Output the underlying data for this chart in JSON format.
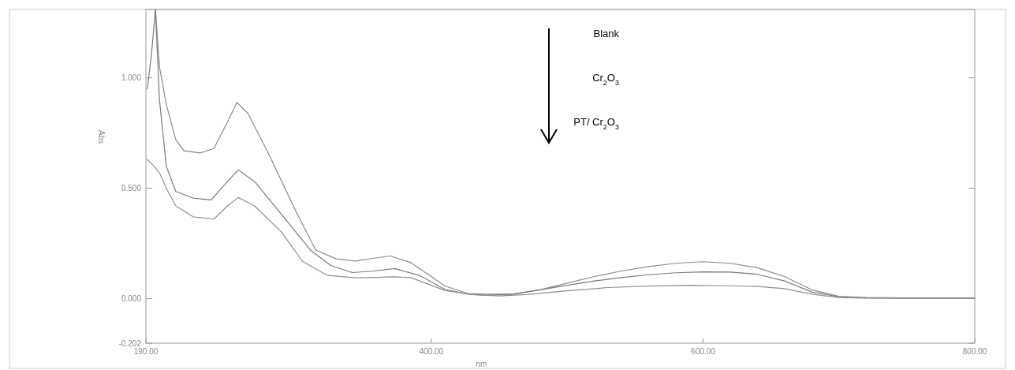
{
  "chart_data": {
    "type": "line",
    "xlabel": "nm",
    "ylabel": "Abs",
    "annotations": [
      "Blank",
      "Cr$_{2}$O$_{3}$",
      "PT/ Cr$_{2}$O$_{3}$"
    ],
    "xlim": [
      190,
      800
    ],
    "xticks": [
      {
        "value": 190,
        "label": "190.00"
      },
      {
        "value": 400,
        "label": "400.00"
      },
      {
        "value": 600,
        "label": "600.00"
      },
      {
        "value": 800,
        "label": "800.00"
      }
    ],
    "ylim": [
      -0.202,
      1.31
    ],
    "yticks": [
      {
        "value": -0.202,
        "label": "-0.202"
      },
      {
        "value": 0,
        "label": "0.000"
      },
      {
        "value": 0.5,
        "label": "0.500"
      },
      {
        "value": 1,
        "label": "1.000"
      }
    ],
    "grid": false,
    "line_style": "solid",
    "marker": "none",
    "series": [
      {
        "color": "#8a8a8a",
        "x": [
          197,
          200,
          205,
          212,
          218,
          230,
          240,
          250,
          257,
          265,
          280,
          300,
          315,
          330,
          344,
          360,
          370,
          385,
          400,
          410,
          427,
          440,
          460,
          480,
          500,
          520,
          540,
          560,
          580,
          600,
          620,
          640,
          660,
          680,
          700,
          720,
          750,
          800
        ],
        "values": [
          1.31,
          1.05,
          0.88,
          0.72,
          0.67,
          0.66,
          0.68,
          0.8,
          0.889,
          0.84,
          0.66,
          0.4,
          0.22,
          0.18,
          0.17,
          0.185,
          0.193,
          0.163,
          0.1,
          0.057,
          0.023,
          0.02,
          0.02,
          0.04,
          0.07,
          0.1,
          0.125,
          0.145,
          0.16,
          0.167,
          0.16,
          0.14,
          0.1,
          0.04,
          0.01,
          0.005,
          0.003,
          0.002
        ]
      },
      {
        "color": "#7a7a7a",
        "x": [
          191,
          194,
          197,
          200,
          205,
          212,
          225,
          238,
          250,
          258,
          270,
          290,
          311,
          326,
          342,
          358,
          373,
          391,
          410,
          427,
          440,
          460,
          480,
          500,
          520,
          540,
          560,
          580,
          600,
          620,
          640,
          660,
          680,
          700,
          720,
          750,
          800
        ],
        "values": [
          0.95,
          1.1,
          1.31,
          0.9,
          0.6,
          0.485,
          0.455,
          0.447,
          0.53,
          0.583,
          0.53,
          0.38,
          0.22,
          0.15,
          0.118,
          0.125,
          0.136,
          0.106,
          0.042,
          0.02,
          0.015,
          0.02,
          0.04,
          0.06,
          0.08,
          0.095,
          0.108,
          0.117,
          0.121,
          0.12,
          0.11,
          0.08,
          0.03,
          0.008,
          0.003,
          0.002,
          0.002
        ]
      },
      {
        "color": "#909090",
        "x": [
          191,
          196,
          200,
          205,
          212,
          225,
          240,
          250,
          258,
          270,
          290,
          305,
          323,
          344,
          360,
          372,
          385,
          410,
          430,
          450,
          470,
          500,
          530,
          560,
          590,
          620,
          640,
          660,
          680,
          700,
          720,
          750,
          800
        ],
        "values": [
          0.63,
          0.6,
          0.57,
          0.5,
          0.42,
          0.37,
          0.36,
          0.42,
          0.458,
          0.42,
          0.3,
          0.17,
          0.106,
          0.094,
          0.096,
          0.099,
          0.095,
          0.037,
          0.018,
          0.012,
          0.018,
          0.035,
          0.05,
          0.057,
          0.06,
          0.058,
          0.055,
          0.045,
          0.02,
          0.005,
          0.002,
          0.001,
          0.001
        ]
      }
    ]
  }
}
